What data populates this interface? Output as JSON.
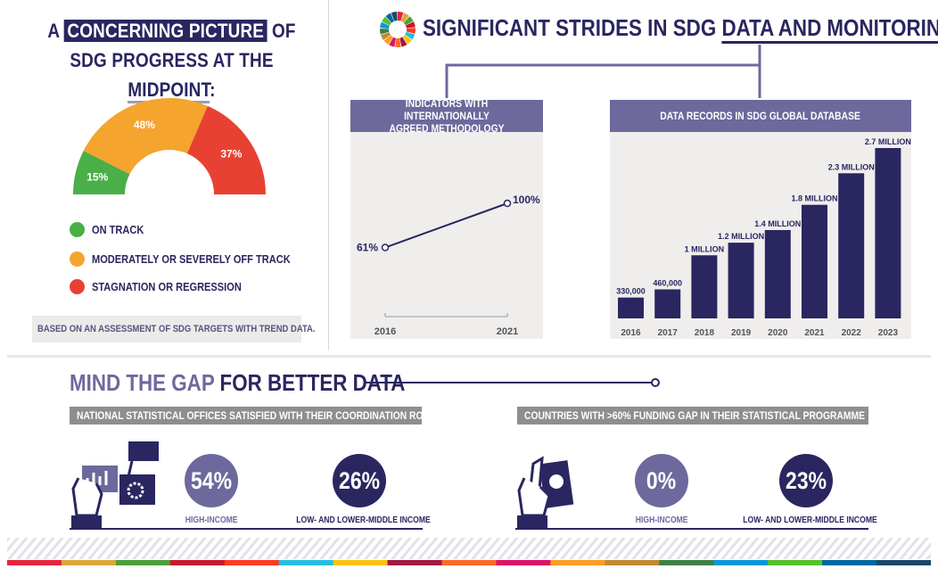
{
  "left": {
    "title_line1_pre": "A",
    "title_line1_hl": "CONCERNING PICTURE",
    "title_line1_post": "OF",
    "title_line2_pre": "SDG PROGRESS AT THE",
    "title_line2_ul": "MIDPOINT",
    "title_line2_post": ":",
    "gauge": {
      "segments": [
        {
          "label": "15%",
          "value": 15,
          "color": "#4aaf48"
        },
        {
          "label": "48%",
          "value": 48,
          "color": "#f5a42e"
        },
        {
          "label": "37%",
          "value": 37,
          "color": "#e84133"
        }
      ]
    },
    "legend": [
      {
        "label": "ON TRACK",
        "color": "#4aaf48"
      },
      {
        "label": "MODERATELY OR SEVERELY OFF TRACK",
        "color": "#f5a42e"
      },
      {
        "label": "STAGNATION OR REGRESSION",
        "color": "#e84133"
      }
    ],
    "note": "BASED ON AN ASSESSMENT OF SDG TARGETS WITH TREND DATA."
  },
  "right": {
    "title_pre": "SIGNIFICANT STRIDES IN SDG",
    "title_ul": "DATA AND MONITORING",
    "indicators": {
      "head": "INDICATORS WITH INTERNATIONALLY AGREED METHODOLOGY",
      "head_line1": "INDICATORS WITH INTERNATIONALLY",
      "head_line2": "AGREED METHODOLOGY"
    },
    "records": {
      "head": "DATA RECORDS IN SDG GLOBAL DATABASE"
    }
  },
  "chart_data": [
    {
      "type": "line",
      "x": [
        "2016",
        "2021"
      ],
      "values": [
        61,
        100
      ],
      "data_labels": [
        "61%",
        "100%"
      ],
      "xlabel": "",
      "ylabel": "",
      "ylim": [
        0,
        100
      ],
      "grid": false
    },
    {
      "type": "bar",
      "categories": [
        "2016",
        "2017",
        "2018",
        "2019",
        "2020",
        "2021",
        "2022",
        "2023"
      ],
      "values": [
        330000,
        460000,
        1000000,
        1200000,
        1400000,
        1800000,
        2300000,
        2700000
      ],
      "data_labels": [
        "330,000",
        "460,000",
        "1 MILLION",
        "1.2 MILLION",
        "1.4 MILLION",
        "1.8 MILLION",
        "2.3 MILLION",
        "2.7 MILLION"
      ],
      "ylim": [
        0,
        2700000
      ],
      "grid": false,
      "color": "#2a2660"
    }
  ],
  "bottom": {
    "title_a": "MIND THE GAP",
    "title_b": "FOR BETTER DATA",
    "nso": {
      "head": "NATIONAL STATISTICAL OFFICES SATISFIED WITH THEIR COORDINATION ROLE",
      "high_value": "54%",
      "high_label": "HIGH-INCOME",
      "low_value": "26%",
      "low_label": "LOW- AND LOWER-MIDDLE INCOME"
    },
    "funding": {
      "head": "COUNTRIES WITH >60% FUNDING GAP IN THEIR STATISTICAL PROGRAMME",
      "high_value": "0%",
      "high_label": "HIGH-INCOME",
      "low_value": "23%",
      "low_label": "LOW- AND LOWER-MIDDLE INCOME"
    }
  },
  "colors": {
    "navy": "#2a2660",
    "purple": "#6d699d",
    "green": "#4aaf48",
    "orange": "#f5a42e",
    "red": "#e84133"
  },
  "sdg_ribbon": [
    "#e5243b",
    "#dda63a",
    "#4c9f38",
    "#c5192d",
    "#ff3a21",
    "#26bde2",
    "#fcc30b",
    "#a21942",
    "#fd6925",
    "#dd1367",
    "#fd9d24",
    "#bf8b2e",
    "#3f7e44",
    "#0a97d9",
    "#56c02b",
    "#00689d",
    "#19486a"
  ]
}
